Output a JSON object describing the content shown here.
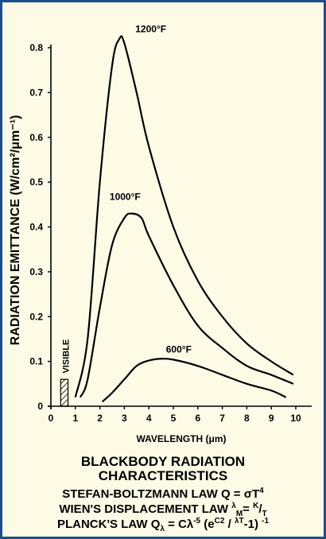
{
  "chart_data": {
    "type": "line",
    "xlabel": "WAVELENGTH (μm)",
    "ylabel": "RADIATION EMITTANCE (W/cm²/μm⁻¹)",
    "xlim": [
      0,
      10
    ],
    "ylim": [
      0,
      0.85
    ],
    "x_ticks": [
      "0",
      "1",
      "2",
      "3",
      "4",
      "5",
      "6",
      "7",
      "8",
      "9",
      "10"
    ],
    "y_ticks": [
      "0",
      "0.1",
      "0.2",
      "0.3",
      "0.4",
      "0.5",
      "0.6",
      "0.7",
      "0.8"
    ],
    "grid": false,
    "series": [
      {
        "name": "1200°F",
        "x": [
          1.0,
          1.5,
          2.0,
          2.5,
          2.8,
          3.0,
          3.5,
          4.0,
          5.0,
          6.0,
          7.0,
          8.0,
          9.0,
          9.9
        ],
        "y": [
          0.02,
          0.15,
          0.5,
          0.76,
          0.82,
          0.81,
          0.7,
          0.58,
          0.4,
          0.28,
          0.2,
          0.14,
          0.1,
          0.07
        ]
      },
      {
        "name": "1000°F",
        "x": [
          1.2,
          1.5,
          2.0,
          2.5,
          3.0,
          3.3,
          3.7,
          4.0,
          5.0,
          6.0,
          7.0,
          8.0,
          9.0,
          9.9
        ],
        "y": [
          0.02,
          0.06,
          0.22,
          0.36,
          0.42,
          0.43,
          0.42,
          0.38,
          0.27,
          0.18,
          0.13,
          0.09,
          0.07,
          0.05
        ]
      },
      {
        "name": "600°F",
        "x": [
          2.1,
          2.5,
          3.0,
          3.5,
          4.0,
          4.5,
          5.0,
          6.0,
          7.0,
          8.0,
          9.0,
          9.6
        ],
        "y": [
          0.01,
          0.03,
          0.06,
          0.09,
          0.102,
          0.106,
          0.104,
          0.09,
          0.07,
          0.05,
          0.035,
          0.02
        ]
      }
    ],
    "annotations": [
      {
        "text": "1200°F"
      },
      {
        "text": "1000°F"
      },
      {
        "text": "600°F"
      },
      {
        "text": "VISIBLE"
      }
    ],
    "visible_band": [
      0.4,
      0.7
    ],
    "visible_height": 0.06
  },
  "caption": {
    "title1": "BLACKBODY RADIATION",
    "title2": "CHARACTERISTICS",
    "stefan": "STEFAN-BOLTZMANN LAW Q = σT",
    "stefan_sup": "4",
    "wien": "WIEN'S DISPLACEMENT LAW ",
    "wien_lm": "λ",
    "wien_m": "M",
    "wien_eq": "= ",
    "wien_k": "K",
    "wien_slash": "/",
    "wien_t": "T",
    "planck": "PLANCK'S LAW Q",
    "planck_sub": "λ",
    "planck_eq": " = Cλ",
    "planck_exp": "-5",
    "planck_paren": " (e",
    "planck_c2": "C",
    "planck_2": "2",
    "planck_div": " / ",
    "planck_lt": "λT",
    "planck_end": "-1) ",
    "planck_end_exp": "-1"
  },
  "colors": {
    "frame": "#1a4e8c",
    "background": "#fdfbe6",
    "line": "#000000"
  }
}
